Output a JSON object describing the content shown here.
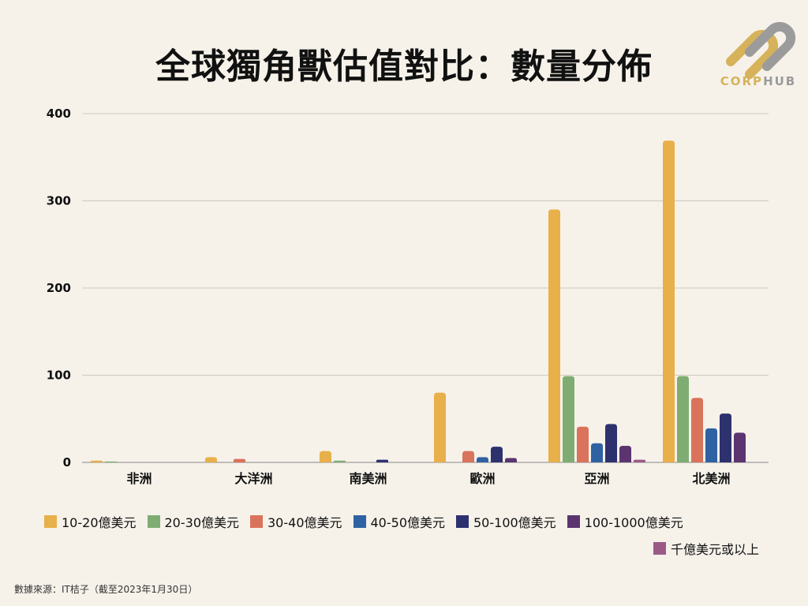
{
  "header": {
    "title": "全球獨角獸估值對比：數量分佈"
  },
  "brand": {
    "logo_text_a": "CORP",
    "logo_text_b": "HUB",
    "gold": "#d6b25a",
    "gray": "#9b9b9b"
  },
  "footer": {
    "source": "數據來源：IT桔子（截至2023年1月30日）"
  },
  "chart_data": {
    "type": "bar",
    "title": "全球獨角獸估值對比：數量分佈",
    "categories": [
      "非洲",
      "大洋洲",
      "南美洲",
      "歐洲",
      "亞洲",
      "北美洲"
    ],
    "ylim": [
      0,
      400
    ],
    "yticks": [
      0,
      100,
      200,
      300,
      400
    ],
    "grid": true,
    "legend_position": "bottom",
    "series": [
      {
        "name": "10-20億美元",
        "color": "#e8b04a",
        "values": [
          2,
          6,
          13,
          80,
          290,
          369
        ]
      },
      {
        "name": "20-30億美元",
        "color": "#7fac73",
        "values": [
          1,
          0,
          2,
          0,
          99,
          99
        ]
      },
      {
        "name": "30-40億美元",
        "color": "#d9735b",
        "values": [
          0,
          4,
          0,
          13,
          41,
          74
        ]
      },
      {
        "name": "40-50億美元",
        "color": "#2f62a3",
        "values": [
          0,
          0,
          0,
          6,
          22,
          39
        ]
      },
      {
        "name": "50-100億美元",
        "color": "#2d316e",
        "values": [
          0,
          0,
          3,
          18,
          44,
          56
        ]
      },
      {
        "name": "100-1000億美元",
        "color": "#5b3470",
        "values": [
          0,
          0,
          0,
          5,
          19,
          34
        ]
      },
      {
        "name": "千億美元或以上",
        "color": "#9b5a86",
        "values": [
          0,
          0,
          0,
          0,
          3,
          0
        ]
      }
    ]
  }
}
